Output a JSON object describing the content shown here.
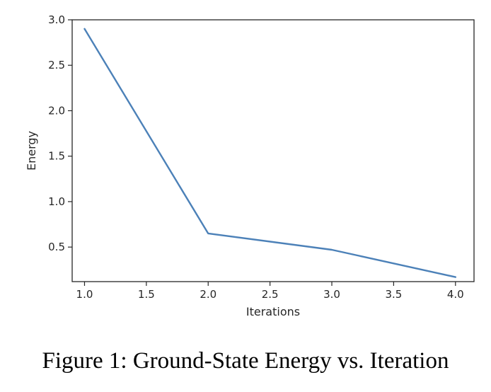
{
  "caption": "Figure 1: Ground-State Energy vs. Iteration",
  "chart_data": {
    "type": "line",
    "xlabel": "Iterations",
    "ylabel": "Energy",
    "xlim": [
      0.9,
      4.15
    ],
    "ylim": [
      0.12,
      3.0
    ],
    "x_ticks": [
      1.0,
      1.5,
      2.0,
      2.5,
      3.0,
      3.5,
      4.0
    ],
    "x_tick_labels": [
      "1.0",
      "1.5",
      "2.0",
      "2.5",
      "3.0",
      "3.5",
      "4.0"
    ],
    "y_ticks": [
      0.5,
      1.0,
      1.5,
      2.0,
      2.5,
      3.0
    ],
    "y_tick_labels": [
      "0.5",
      "1.0",
      "1.5",
      "2.0",
      "2.5",
      "3.0"
    ],
    "grid": false,
    "series": [
      {
        "color": "#4c81b8",
        "x": [
          1.0,
          2.0,
          3.0,
          4.0
        ],
        "y": [
          2.9,
          0.65,
          0.47,
          0.17
        ]
      }
    ]
  }
}
